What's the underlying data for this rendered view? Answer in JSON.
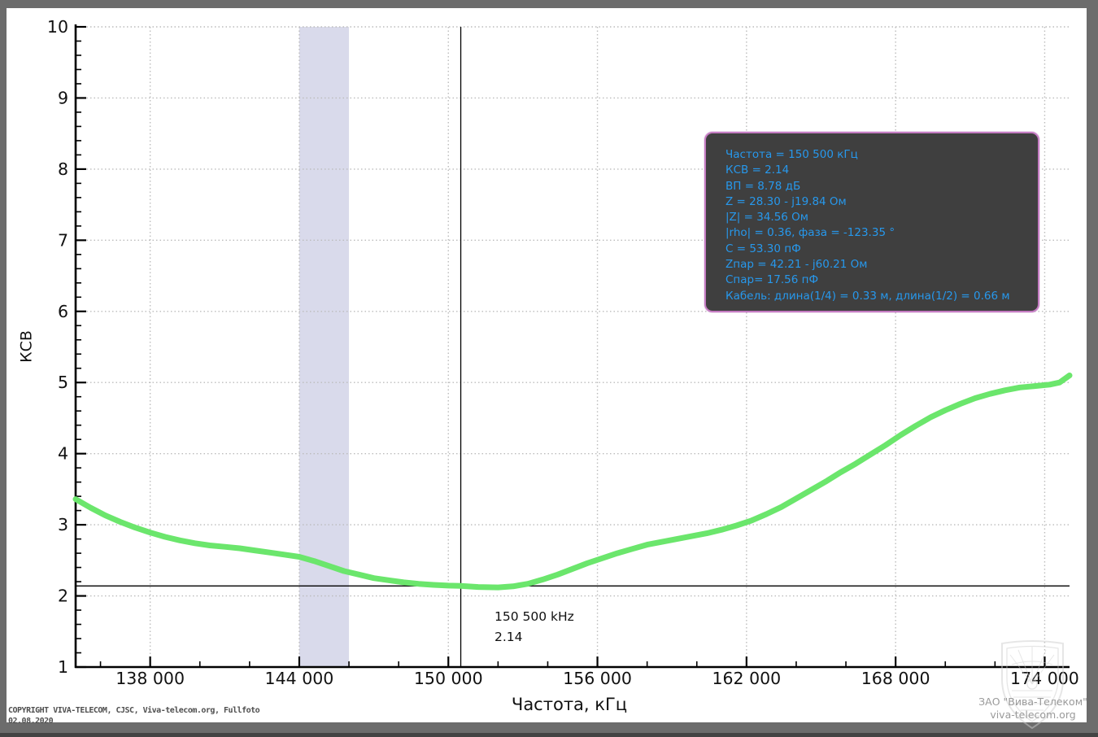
{
  "chart_data": {
    "type": "line",
    "title": "",
    "xlabel": "Частота, кГц",
    "ylabel": "КСВ",
    "xlim": [
      135000,
      175000
    ],
    "ylim": [
      1,
      10
    ],
    "grid": true,
    "x_major_ticks": [
      138000,
      144000,
      150000,
      156000,
      162000,
      168000,
      174000
    ],
    "x_tick_labels": [
      "138 000",
      "144 000",
      "150 000",
      "156 000",
      "162 000",
      "168 000",
      "174 000"
    ],
    "x_minor_step_khz": 2000,
    "y_major_ticks": [
      1,
      2,
      3,
      4,
      5,
      6,
      7,
      8,
      9,
      10
    ],
    "y_minor_step": 0.2,
    "band": {
      "name": "144-146 MHz highlighted band",
      "from": 144000,
      "to": 146000,
      "color": "#d9daeb"
    },
    "marker": {
      "freq_khz": 150500,
      "vswr": 2.14,
      "freq_label": "150 500 kHz",
      "vswr_label": "2.14",
      "line_color": "#000000"
    },
    "series": [
      {
        "name": "КСВ",
        "color": "#6be66c",
        "points": [
          [
            135000,
            3.36
          ],
          [
            135600,
            3.24
          ],
          [
            136200,
            3.13
          ],
          [
            136800,
            3.04
          ],
          [
            137400,
            2.96
          ],
          [
            138000,
            2.89
          ],
          [
            138600,
            2.83
          ],
          [
            139200,
            2.78
          ],
          [
            139800,
            2.74
          ],
          [
            140400,
            2.71
          ],
          [
            141000,
            2.69
          ],
          [
            141600,
            2.67
          ],
          [
            142200,
            2.64
          ],
          [
            142800,
            2.61
          ],
          [
            143400,
            2.58
          ],
          [
            144000,
            2.55
          ],
          [
            144600,
            2.49
          ],
          [
            145200,
            2.42
          ],
          [
            145800,
            2.35
          ],
          [
            146400,
            2.3
          ],
          [
            147000,
            2.25
          ],
          [
            147600,
            2.22
          ],
          [
            148200,
            2.19
          ],
          [
            148800,
            2.17
          ],
          [
            149400,
            2.155
          ],
          [
            150000,
            2.145
          ],
          [
            150500,
            2.14
          ],
          [
            151200,
            2.125
          ],
          [
            152000,
            2.12
          ],
          [
            152600,
            2.135
          ],
          [
            153200,
            2.17
          ],
          [
            153800,
            2.23
          ],
          [
            154400,
            2.3
          ],
          [
            155000,
            2.38
          ],
          [
            155600,
            2.46
          ],
          [
            156200,
            2.53
          ],
          [
            156800,
            2.6
          ],
          [
            157400,
            2.66
          ],
          [
            158000,
            2.72
          ],
          [
            158600,
            2.76
          ],
          [
            159200,
            2.8
          ],
          [
            159800,
            2.84
          ],
          [
            160400,
            2.88
          ],
          [
            161000,
            2.93
          ],
          [
            161600,
            2.99
          ],
          [
            162200,
            3.06
          ],
          [
            162800,
            3.15
          ],
          [
            163400,
            3.25
          ],
          [
            164000,
            3.37
          ],
          [
            164600,
            3.49
          ],
          [
            165200,
            3.61
          ],
          [
            165800,
            3.74
          ],
          [
            166400,
            3.86
          ],
          [
            167000,
            3.99
          ],
          [
            167600,
            4.12
          ],
          [
            168200,
            4.26
          ],
          [
            168800,
            4.39
          ],
          [
            169400,
            4.51
          ],
          [
            170000,
            4.61
          ],
          [
            170600,
            4.7
          ],
          [
            171200,
            4.78
          ],
          [
            171800,
            4.84
          ],
          [
            172400,
            4.89
          ],
          [
            173000,
            4.93
          ],
          [
            173600,
            4.95
          ],
          [
            174200,
            4.97
          ],
          [
            174600,
            5.0
          ],
          [
            175000,
            5.1
          ]
        ]
      }
    ],
    "colors": {
      "grid": "#bcbcbc",
      "axis": "#000000",
      "panel_bg": "#ffffff",
      "frame_bg": "#6c6c6c"
    }
  },
  "tooltip": {
    "lines": [
      "Частота = 150 500 кГц",
      "КСВ = 2.14",
      "ВП = 8.78 дБ",
      "Z = 28.30 - j19.84 Ом",
      "|Z| = 34.56 Ом",
      "|rho| = 0.36, фаза = -123.35 °",
      "C = 53.30 пФ",
      "Zпар = 42.21 - j60.21 Ом",
      "Спар= 17.56 пФ",
      "Кабель: длина(1/4) = 0.33 м, длина(1/2) = 0.66 м"
    ],
    "text_color": "#2798ec",
    "bg_color": "#3f3f3f",
    "border_color": "#c47cc2"
  },
  "watermark": {
    "company": "ЗАО \"Вива-Телеком\"",
    "url": "viva-telecom.org"
  },
  "footer": {
    "copyright": "COPYRIGHT VIVA-TELECOM, CJSC, Viva-telecom.org, Fullfoto",
    "date": "02.08.2020"
  }
}
